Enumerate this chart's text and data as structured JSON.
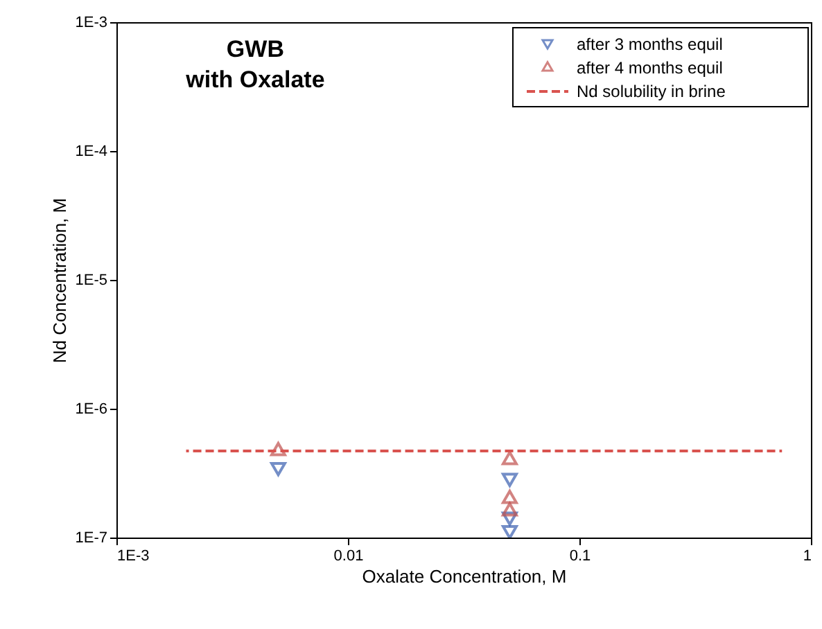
{
  "chart_data": {
    "type": "scatter",
    "xlabel": "Oxalate Concentration, M",
    "ylabel": "Nd Concentration, M",
    "annotations": [
      "GWB",
      "with Oxalate"
    ],
    "log": "xy",
    "xlim": [
      0.001,
      1
    ],
    "ylim": [
      1e-07,
      0.001
    ],
    "xticks": [
      {
        "value": 0.001,
        "label": "1E-3"
      },
      0.01,
      0.1,
      1
    ],
    "yticks": [
      {
        "value": 1e-07,
        "label": "1E-7"
      },
      {
        "value": 1e-06,
        "label": "1E-6"
      },
      {
        "value": 1e-05,
        "label": "1E-5"
      },
      {
        "value": 0.0001,
        "label": "1E-4"
      },
      {
        "value": 0.001,
        "label": "1E-3"
      }
    ],
    "grid": false,
    "legend": "top right",
    "series": [
      {
        "name": "after 3 months equil",
        "color": "#3a5fb0",
        "marker": "triangle-down",
        "x": [
          0.005,
          0.05,
          0.05,
          0.05
        ],
        "values": [
          3.4e-07,
          2.8e-07,
          1.4e-07,
          1.1e-07
        ]
      },
      {
        "name": "after 4 months equil",
        "color": "#c0504d",
        "marker": "triangle",
        "x": [
          0.005,
          0.05,
          0.05,
          0.05
        ],
        "values": [
          4.7e-07,
          4e-07,
          2e-07,
          1.6e-07
        ]
      },
      {
        "name": "Nd solubility in brine",
        "type": "line",
        "line_style": "dashed",
        "color": "#d9534f",
        "x": [
          0.002,
          0.75
        ],
        "values": [
          4.7e-07,
          4.7e-07
        ]
      }
    ]
  }
}
